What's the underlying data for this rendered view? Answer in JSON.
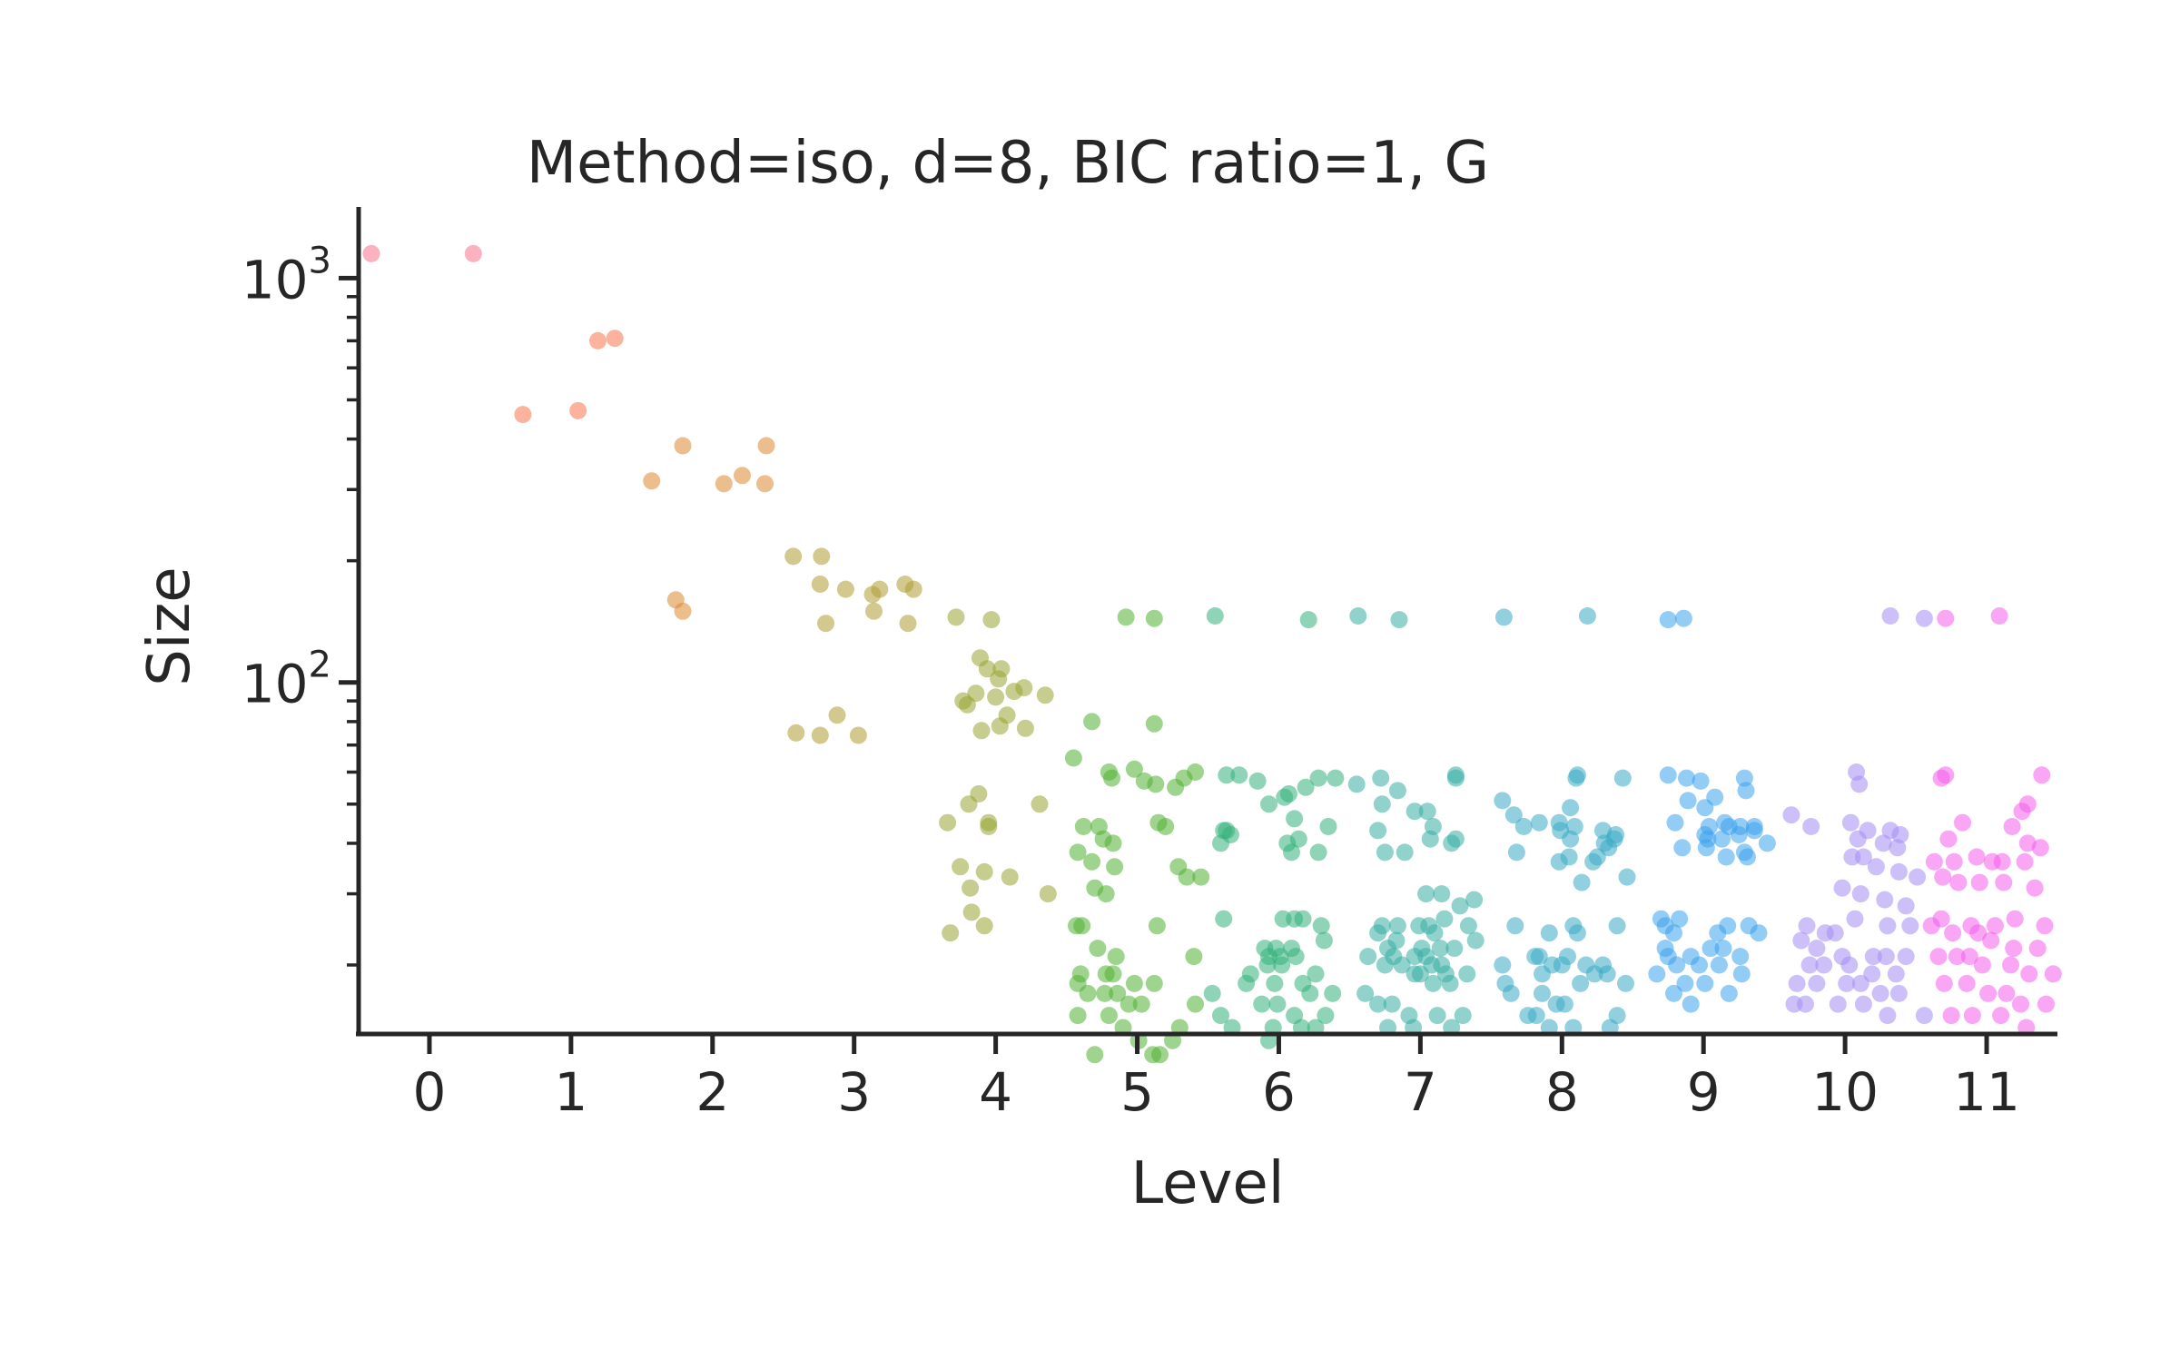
{
  "chart_data": {
    "type": "scatter",
    "title": "Method=iso, d=8, BIC ratio=1, G",
    "xlabel": "Level",
    "ylabel": "Size",
    "yscale": "log",
    "xlim": [
      -0.5,
      11.5
    ],
    "ylim": [
      13.5,
      1500
    ],
    "x_ticks": [
      "0",
      "1",
      "2",
      "3",
      "4",
      "5",
      "6",
      "7",
      "8",
      "9",
      "10",
      "11"
    ],
    "y_ticks": [
      {
        "value": 100,
        "base": "10",
        "exp": "2"
      },
      {
        "value": 1000,
        "base": "10",
        "exp": "3"
      }
    ],
    "grid": false,
    "point_alpha": 0.55,
    "level_colors": [
      "#f77189",
      "#f7754f",
      "#dc8932",
      "#ae9d31",
      "#97a431",
      "#50b131",
      "#33b07a",
      "#36ada4",
      "#38a9c5",
      "#3ba3ec",
      "#a48cf4",
      "#f45deb"
    ],
    "series": [
      {
        "level": 0,
        "x": [
          -0.41,
          0.31
        ],
        "y": [
          1150,
          1150
        ]
      },
      {
        "level": 1,
        "x": [
          0.66,
          1.05,
          1.19,
          1.31
        ],
        "y": [
          460,
          470,
          700,
          710
        ]
      },
      {
        "level": 2,
        "x": [
          1.57,
          1.79,
          2.08,
          2.21,
          2.37,
          2.38,
          1.74,
          1.79
        ],
        "y": [
          315,
          385,
          310,
          325,
          310,
          385,
          160,
          150
        ]
      },
      {
        "level": 3,
        "x": [
          2.57,
          2.77,
          2.76,
          2.94,
          3.13,
          3.18,
          3.36,
          3.42,
          2.8,
          3.14,
          3.38,
          2.59,
          2.76,
          2.88,
          3.03
        ],
        "y": [
          205,
          205,
          175,
          170,
          165,
          170,
          175,
          170,
          140,
          150,
          140,
          75,
          74,
          83,
          74
        ]
      },
      {
        "level": 4,
        "x": [
          3.72,
          3.97,
          3.89,
          3.94,
          4.02,
          4.04,
          3.8,
          4.13,
          3.77,
          3.86,
          4.2,
          4.0,
          4.08,
          4.35,
          3.9,
          4.03,
          4.21,
          3.66,
          3.81,
          3.88,
          3.95,
          4.31,
          3.75,
          3.92,
          4.1,
          3.82,
          3.95,
          4.37,
          3.83,
          3.68,
          3.92
        ],
        "y": [
          145,
          143,
          115,
          108,
          102,
          108,
          88,
          95,
          90,
          94,
          97,
          92,
          83,
          93,
          76,
          78,
          77,
          45,
          50,
          53,
          45,
          50,
          35,
          34,
          33,
          31,
          44,
          30,
          27,
          24,
          25
        ]
      },
      {
        "level": 5,
        "x": [
          4.92,
          5.12,
          4.68,
          5.12,
          4.55,
          4.8,
          4.98,
          5.13,
          5.27,
          5.33,
          5.41,
          4.82,
          5.05,
          4.62,
          4.73,
          4.83,
          5.2,
          4.58,
          4.68,
          4.76,
          4.84,
          5.29,
          5.35,
          5.45,
          4.7,
          4.78,
          5.15,
          4.57,
          4.61,
          4.72,
          4.85,
          5.14,
          4.6,
          4.83,
          5.4,
          4.58,
          4.65,
          4.77,
          4.98,
          4.86,
          4.94,
          5.03,
          5.12,
          4.8,
          4.7,
          5.11,
          5.16,
          5.25,
          5.3,
          4.58,
          4.78,
          5.01,
          4.9,
          5.41
        ],
        "y": [
          145,
          144,
          80,
          79,
          65,
          60,
          61,
          56,
          55,
          58,
          60,
          58,
          57,
          44,
          44,
          40,
          44,
          38,
          36,
          41,
          35,
          35,
          33,
          33,
          31,
          30,
          45,
          25,
          25,
          22,
          21,
          25,
          19,
          19,
          21,
          15,
          17,
          17,
          18,
          17,
          16,
          16,
          18,
          15,
          12,
          12,
          12,
          13,
          14,
          18,
          19,
          13,
          14,
          16
        ]
      },
      {
        "level": 6,
        "x": [
          5.55,
          6.21,
          5.63,
          5.72,
          5.85,
          5.63,
          6.04,
          6.19,
          6.28,
          6.4,
          5.93,
          6.07,
          6.11,
          5.59,
          5.61,
          5.66,
          6.09,
          6.14,
          6.35,
          6.06,
          6.28,
          6.11,
          5.61,
          6.03,
          6.3,
          6.17,
          5.9,
          5.98,
          5.93,
          6.09,
          6.32,
          6.01,
          6.12,
          5.92,
          6.02,
          6.26,
          5.8,
          5.97,
          6.17,
          6.38,
          5.53,
          5.77,
          6.22,
          5.88,
          5.59,
          6.16,
          6.26,
          5.96,
          6.11,
          5.99,
          6.33,
          5.67,
          5.93
        ],
        "y": [
          146,
          143,
          59,
          59,
          57,
          43,
          52,
          55,
          58,
          58,
          50,
          53,
          46,
          40,
          43,
          42,
          38,
          41,
          44,
          40,
          38,
          26,
          26,
          26,
          25,
          26,
          22,
          22,
          21,
          22,
          23,
          21,
          21,
          20,
          20,
          19,
          19,
          18,
          18,
          17,
          17,
          18,
          17,
          16,
          15,
          14,
          14,
          14,
          15,
          16,
          15,
          14,
          13
        ]
      },
      {
        "level": 7,
        "x": [
          6.56,
          6.85,
          6.55,
          6.72,
          6.84,
          7.05,
          7.25,
          7.25,
          6.73,
          6.96,
          7.09,
          7.22,
          7.25,
          6.7,
          7.07,
          6.75,
          6.89,
          7.04,
          7.15,
          7.28,
          7.38,
          6.73,
          6.84,
          7.06,
          7.17,
          6.99,
          7.1,
          7.34,
          6.7,
          6.83,
          7.14,
          7.39,
          6.77,
          7.01,
          7.24,
          6.63,
          6.81,
          6.96,
          7.08,
          7.15,
          7.04,
          6.75,
          6.87,
          7.18,
          7.33,
          6.61,
          6.96,
          7.0,
          7.09,
          7.21,
          6.7,
          6.8,
          6.92,
          7.12,
          7.3,
          6.77,
          6.95,
          7.22
        ],
        "y": [
          146,
          143,
          56,
          58,
          54,
          48,
          58,
          59,
          50,
          48,
          44,
          40,
          41,
          43,
          41,
          38,
          38,
          30,
          30,
          28,
          29,
          25,
          25,
          25,
          26,
          25,
          24,
          25,
          24,
          23,
          22,
          23,
          22,
          22,
          22,
          21,
          21,
          21,
          20,
          20,
          21,
          20,
          20,
          19,
          19,
          17,
          19,
          19,
          18,
          18,
          16,
          16,
          15,
          15,
          15,
          14,
          14,
          14
        ]
      },
      {
        "level": 8,
        "x": [
          7.59,
          8.18,
          7.58,
          7.66,
          7.84,
          7.98,
          8.06,
          8.1,
          8.11,
          8.43,
          7.73,
          7.99,
          8.06,
          8.09,
          8.38,
          8.3,
          8.29,
          8.22,
          8.25,
          8.33,
          8.37,
          7.68,
          7.98,
          8.05,
          8.14,
          8.46,
          7.67,
          7.91,
          8.08,
          8.11,
          8.39,
          7.81,
          7.84,
          8.04,
          8.17,
          8.29,
          7.58,
          7.93,
          8.0,
          8.23,
          8.32,
          7.6,
          7.86,
          8.13,
          8.45,
          7.64,
          7.86,
          7.96,
          8.02,
          8.39,
          7.76,
          7.82,
          7.91,
          8.08,
          8.34
        ],
        "y": [
          145,
          146,
          51,
          47,
          45,
          45,
          49,
          58,
          59,
          58,
          44,
          43,
          41,
          44,
          42,
          40,
          43,
          36,
          37,
          39,
          41,
          38,
          36,
          37,
          32,
          33,
          25,
          24,
          25,
          24,
          25,
          21,
          21,
          21,
          20,
          20,
          20,
          20,
          20,
          19,
          19,
          18,
          19,
          18,
          18,
          17,
          17,
          16,
          16,
          15,
          15,
          15,
          14,
          14,
          14
        ]
      },
      {
        "level": 9,
        "x": [
          8.75,
          8.86,
          8.75,
          8.88,
          8.98,
          9.01,
          9.08,
          9.15,
          9.29,
          9.3,
          8.89,
          9.04,
          9.18,
          9.26,
          9.36,
          8.8,
          9.01,
          9.03,
          9.13,
          9.25,
          9.36,
          9.45,
          8.85,
          9.02,
          9.16,
          9.29,
          9.31,
          8.7,
          8.73,
          8.79,
          8.83,
          9.1,
          9.17,
          9.32,
          9.39,
          8.73,
          8.91,
          9.05,
          9.14,
          9.26,
          8.75,
          8.81,
          8.97,
          9.11,
          9.27,
          8.67,
          8.87,
          9.01,
          9.18,
          8.79,
          8.91
        ],
        "y": [
          143,
          144,
          59,
          58,
          57,
          49,
          52,
          45,
          58,
          54,
          51,
          44,
          44,
          44,
          44,
          45,
          42,
          41,
          41,
          42,
          43,
          40,
          39,
          39,
          37,
          38,
          37,
          26,
          25,
          24,
          26,
          24,
          25,
          25,
          24,
          22,
          21,
          22,
          22,
          21,
          21,
          20,
          20,
          20,
          19,
          19,
          18,
          18,
          17,
          17,
          16
        ]
      },
      {
        "level": 10,
        "x": [
          10.32,
          10.56,
          9.62,
          10.04,
          10.16,
          10.32,
          10.39,
          10.1,
          10.08,
          9.76,
          10.09,
          10.27,
          10.37,
          10.05,
          10.13,
          10.22,
          10.38,
          10.51,
          9.98,
          10.11,
          10.28,
          10.43,
          9.73,
          9.86,
          9.93,
          10.07,
          10.3,
          10.46,
          9.69,
          9.8,
          9.98,
          10.2,
          10.29,
          10.43,
          9.75,
          9.85,
          10.03,
          10.19,
          10.36,
          9.66,
          9.8,
          10.01,
          10.11,
          10.25,
          10.38,
          9.64,
          9.72,
          9.95,
          10.13,
          10.3,
          10.56
        ],
        "y": [
          146,
          144,
          47,
          45,
          43,
          43,
          42,
          56,
          60,
          44,
          41,
          40,
          39,
          37,
          37,
          35,
          34,
          33,
          31,
          30,
          29,
          28,
          25,
          24,
          24,
          26,
          25,
          25,
          23,
          22,
          21,
          21,
          21,
          21,
          20,
          20,
          20,
          19,
          19,
          18,
          18,
          18,
          18,
          17,
          17,
          16,
          16,
          16,
          16,
          15,
          15
        ]
      },
      {
        "level": 11,
        "x": [
          10.71,
          11.09,
          11.39,
          10.68,
          10.71,
          11.29,
          11.25,
          10.83,
          11.18,
          10.73,
          11.29,
          11.38,
          10.63,
          10.77,
          10.93,
          11.04,
          11.11,
          11.27,
          10.69,
          10.8,
          10.95,
          11.12,
          11.34,
          10.68,
          10.89,
          11.06,
          11.2,
          11.41,
          10.61,
          10.76,
          10.94,
          11.03,
          11.19,
          11.36,
          10.66,
          10.79,
          10.88,
          10.97,
          11.17,
          11.3,
          11.47,
          10.7,
          10.86,
          11.01,
          11.14,
          11.24,
          11.42,
          10.75,
          10.9,
          11.1,
          11.28
        ],
        "y": [
          144,
          146,
          59,
          58,
          59,
          50,
          48,
          45,
          44,
          41,
          40,
          39,
          36,
          36,
          37,
          36,
          36,
          36,
          33,
          32,
          32,
          32,
          31,
          26,
          25,
          25,
          26,
          25,
          25,
          24,
          24,
          23,
          22,
          22,
          21,
          21,
          21,
          20,
          20,
          19,
          19,
          18,
          18,
          17,
          17,
          16,
          16,
          15,
          15,
          15,
          14
        ]
      }
    ]
  }
}
